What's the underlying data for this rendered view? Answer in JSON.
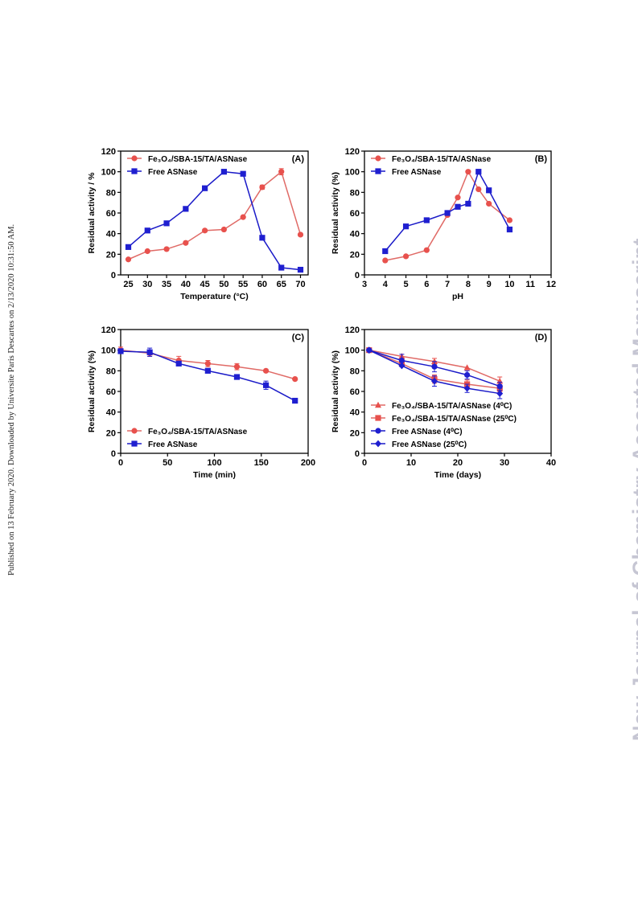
{
  "side_note": "Published on 13 February 2020. Downloaded by Universite Paris Descartes on 2/13/2020 10:31:50 AM.",
  "watermark": "New Journal of Chemistry Accepted Manuscript",
  "colors": {
    "red": "#e8514d",
    "blue": "#1f1fd0",
    "redLine": "#e06a66",
    "blueLine": "#1a1ac8"
  },
  "chart_data": [
    {
      "type": "line",
      "panel_label": "(A)",
      "xlabel": "Temperature (°C)",
      "ylabel": "Residual activity / %",
      "xlim": [
        23,
        72
      ],
      "ylim": [
        0,
        120
      ],
      "xticks": [
        25,
        30,
        35,
        40,
        45,
        50,
        55,
        60,
        65,
        70
      ],
      "yticks": [
        0,
        20,
        40,
        60,
        80,
        100,
        120
      ],
      "legend_position": "top-left",
      "series": [
        {
          "name": "Fe₃O₄/SBA-15/TA/ASNase",
          "color": "red",
          "marker": "circle",
          "x": [
            25,
            30,
            35,
            40,
            45,
            50,
            55,
            60,
            65,
            70
          ],
          "y": [
            15,
            23,
            25,
            31,
            43,
            44,
            56,
            85,
            100,
            39
          ],
          "err": [
            0,
            0,
            0,
            0,
            0,
            0,
            0,
            2,
            3,
            0
          ]
        },
        {
          "name": "Free ASNase",
          "color": "blue",
          "marker": "square",
          "x": [
            25,
            30,
            35,
            40,
            45,
            50,
            55,
            60,
            65,
            70
          ],
          "y": [
            27,
            43,
            50,
            64,
            84,
            100,
            98,
            36,
            7,
            5
          ],
          "err": [
            0,
            0,
            0,
            0,
            0,
            0,
            0,
            0,
            0,
            0
          ]
        }
      ]
    },
    {
      "type": "line",
      "panel_label": "(B)",
      "xlabel": "pH",
      "ylabel": "Residual activity (%)",
      "xlim": [
        3,
        12
      ],
      "ylim": [
        0,
        120
      ],
      "xticks": [
        3,
        4,
        5,
        6,
        7,
        8,
        9,
        10,
        11,
        12
      ],
      "yticks": [
        0,
        20,
        40,
        60,
        80,
        100,
        120
      ],
      "legend_position": "top-left",
      "series": [
        {
          "name": "Fe₃O₄/SBA-15/TA/ASNase",
          "color": "red",
          "marker": "circle",
          "x": [
            4,
            5,
            6,
            7,
            7.5,
            8,
            8.5,
            9,
            10
          ],
          "y": [
            14,
            18,
            24,
            58,
            75,
            100,
            83,
            69,
            53
          ],
          "err": [
            0,
            0,
            0,
            0,
            0,
            0,
            0,
            0,
            0
          ]
        },
        {
          "name": "Free ASNase",
          "color": "blue",
          "marker": "square",
          "x": [
            4,
            5,
            6,
            7,
            7.5,
            8,
            8.5,
            9,
            10
          ],
          "y": [
            23,
            47,
            53,
            60,
            66,
            69,
            100,
            82,
            44
          ],
          "err": [
            0,
            0,
            0,
            0,
            0,
            0,
            0,
            0,
            0
          ]
        }
      ]
    },
    {
      "type": "line",
      "panel_label": "(C)",
      "xlabel": "Time (min)",
      "ylabel": "Residual activity (%)",
      "xlim": [
        0,
        200
      ],
      "ylim": [
        0,
        120
      ],
      "xticks": [
        0,
        50,
        100,
        150,
        200
      ],
      "yticks": [
        0,
        20,
        40,
        60,
        80,
        100,
        120
      ],
      "legend_position": "bottom-left",
      "series": [
        {
          "name": "Fe₃O₄/SBA-15/TA/ASNase",
          "color": "red",
          "marker": "circle",
          "x": [
            0,
            31,
            62,
            93,
            124,
            155,
            186
          ],
          "y": [
            100,
            97,
            90,
            87,
            84,
            80,
            72
          ],
          "err": [
            3,
            3,
            4,
            3,
            3,
            0,
            0
          ]
        },
        {
          "name": "Free ASNase",
          "color": "blue",
          "marker": "square",
          "x": [
            0,
            31,
            62,
            93,
            124,
            155,
            186
          ],
          "y": [
            99,
            98,
            87,
            80,
            74,
            66,
            51
          ],
          "err": [
            0,
            4,
            0,
            0,
            0,
            4,
            0
          ]
        }
      ]
    },
    {
      "type": "line",
      "panel_label": "(D)",
      "xlabel": "Time (days)",
      "ylabel": "Residual activity (%)",
      "xlim": [
        0,
        40
      ],
      "ylim": [
        0,
        120
      ],
      "xticks": [
        0,
        10,
        20,
        30,
        40
      ],
      "yticks": [
        0,
        20,
        40,
        60,
        80,
        100,
        120
      ],
      "legend_position": "bottom-left",
      "series": [
        {
          "name": "Fe₃O₄/SBA-15/TA/ASNase (4⁰C)",
          "color": "red",
          "marker": "triangle",
          "x": [
            1,
            8,
            15,
            22,
            29
          ],
          "y": [
            100,
            94,
            89,
            83,
            70
          ],
          "err": [
            0,
            0,
            3,
            0,
            4
          ]
        },
        {
          "name": "Fe₃O₄/SBA-15/TA/ASNase (25⁰C)",
          "color": "red",
          "marker": "square",
          "x": [
            1,
            8,
            15,
            22,
            29
          ],
          "y": [
            100,
            87,
            72,
            67,
            63
          ],
          "err": [
            0,
            0,
            4,
            4,
            3
          ]
        },
        {
          "name": "Free ASNase (4⁰C)",
          "color": "blue",
          "marker": "circle",
          "x": [
            1,
            8,
            15,
            22,
            29
          ],
          "y": [
            100,
            90,
            84,
            76,
            65
          ],
          "err": [
            0,
            6,
            5,
            4,
            4
          ]
        },
        {
          "name": "Free ASNase (25⁰C)",
          "color": "blue",
          "marker": "diamond",
          "x": [
            1,
            8,
            15,
            22,
            29
          ],
          "y": [
            100,
            85,
            70,
            63,
            58
          ],
          "err": [
            0,
            0,
            5,
            4,
            5
          ]
        }
      ]
    }
  ]
}
